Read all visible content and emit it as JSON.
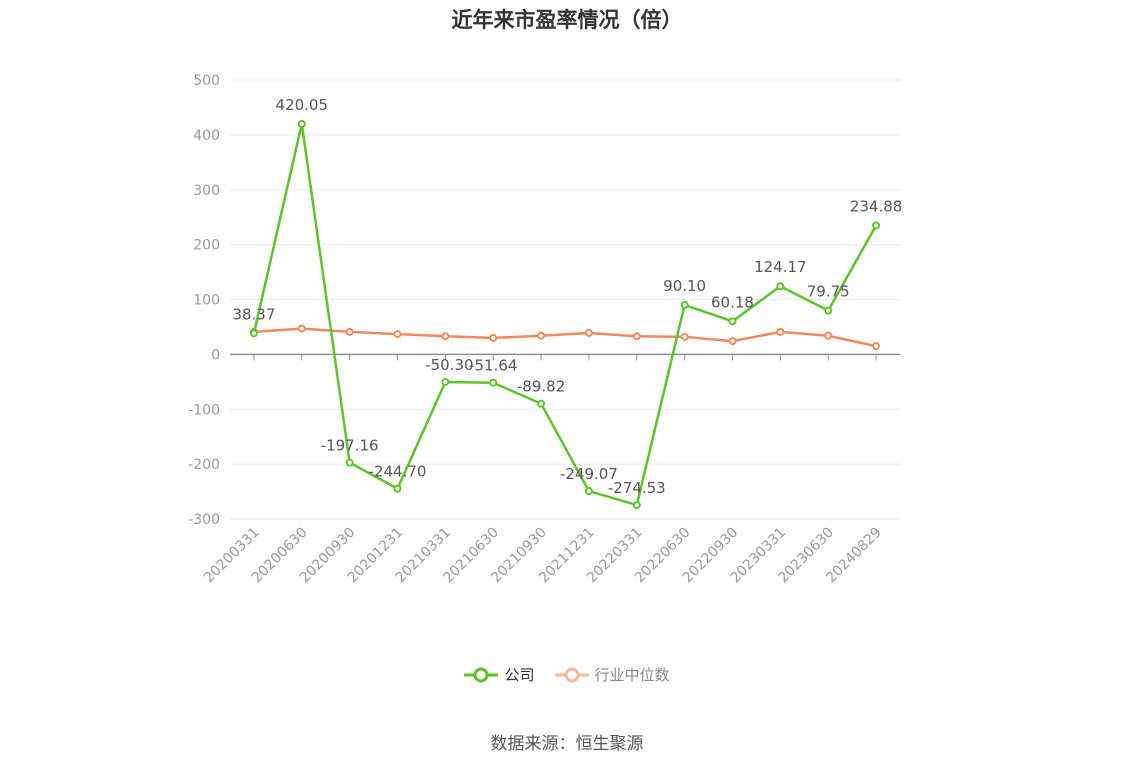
{
  "title": "近年来市盈率情况（倍）",
  "source": "数据来源：恒生聚源",
  "colors": {
    "company": "#5cc42b",
    "industry": "#f2895b",
    "industry_legend": "#f6b79c",
    "grid": "#e6e9f0",
    "axis": "#999999",
    "label": "#555555"
  },
  "chart_data": {
    "type": "line",
    "title": "近年来市盈率情况（倍）",
    "xlabel": "",
    "ylabel": "",
    "ylim": [
      -300,
      500
    ],
    "yticks": [
      500,
      400,
      300,
      200,
      100,
      0,
      -100,
      -200,
      -300
    ],
    "grid": true,
    "legend_position": "bottom-center",
    "categories": [
      "20200331",
      "20200630",
      "20200930",
      "20201231",
      "20210331",
      "20210630",
      "20210930",
      "20211231",
      "20220331",
      "20220630",
      "20220930",
      "20230331",
      "20230630",
      "20240829"
    ],
    "series": [
      {
        "name": "公司",
        "color": "#5cc42b",
        "values": [
          38.37,
          420.05,
          -197.16,
          -244.7,
          -50.3,
          -51.64,
          -89.82,
          -249.07,
          -274.53,
          90.1,
          60.18,
          124.17,
          79.75,
          234.88
        ],
        "labels": [
          "38.37",
          "420.05",
          "-197.16",
          "-244.70",
          "-50.30",
          "-51.64",
          "-89.82",
          "-249.07",
          "-274.53",
          "90.10",
          "60.18",
          "124.17",
          "79.75",
          "234.88"
        ]
      },
      {
        "name": "行业中位数",
        "color": "#f2895b",
        "values": [
          41,
          47,
          41,
          37,
          33,
          30,
          34,
          39,
          33,
          32,
          24,
          41,
          34,
          15
        ]
      }
    ]
  }
}
